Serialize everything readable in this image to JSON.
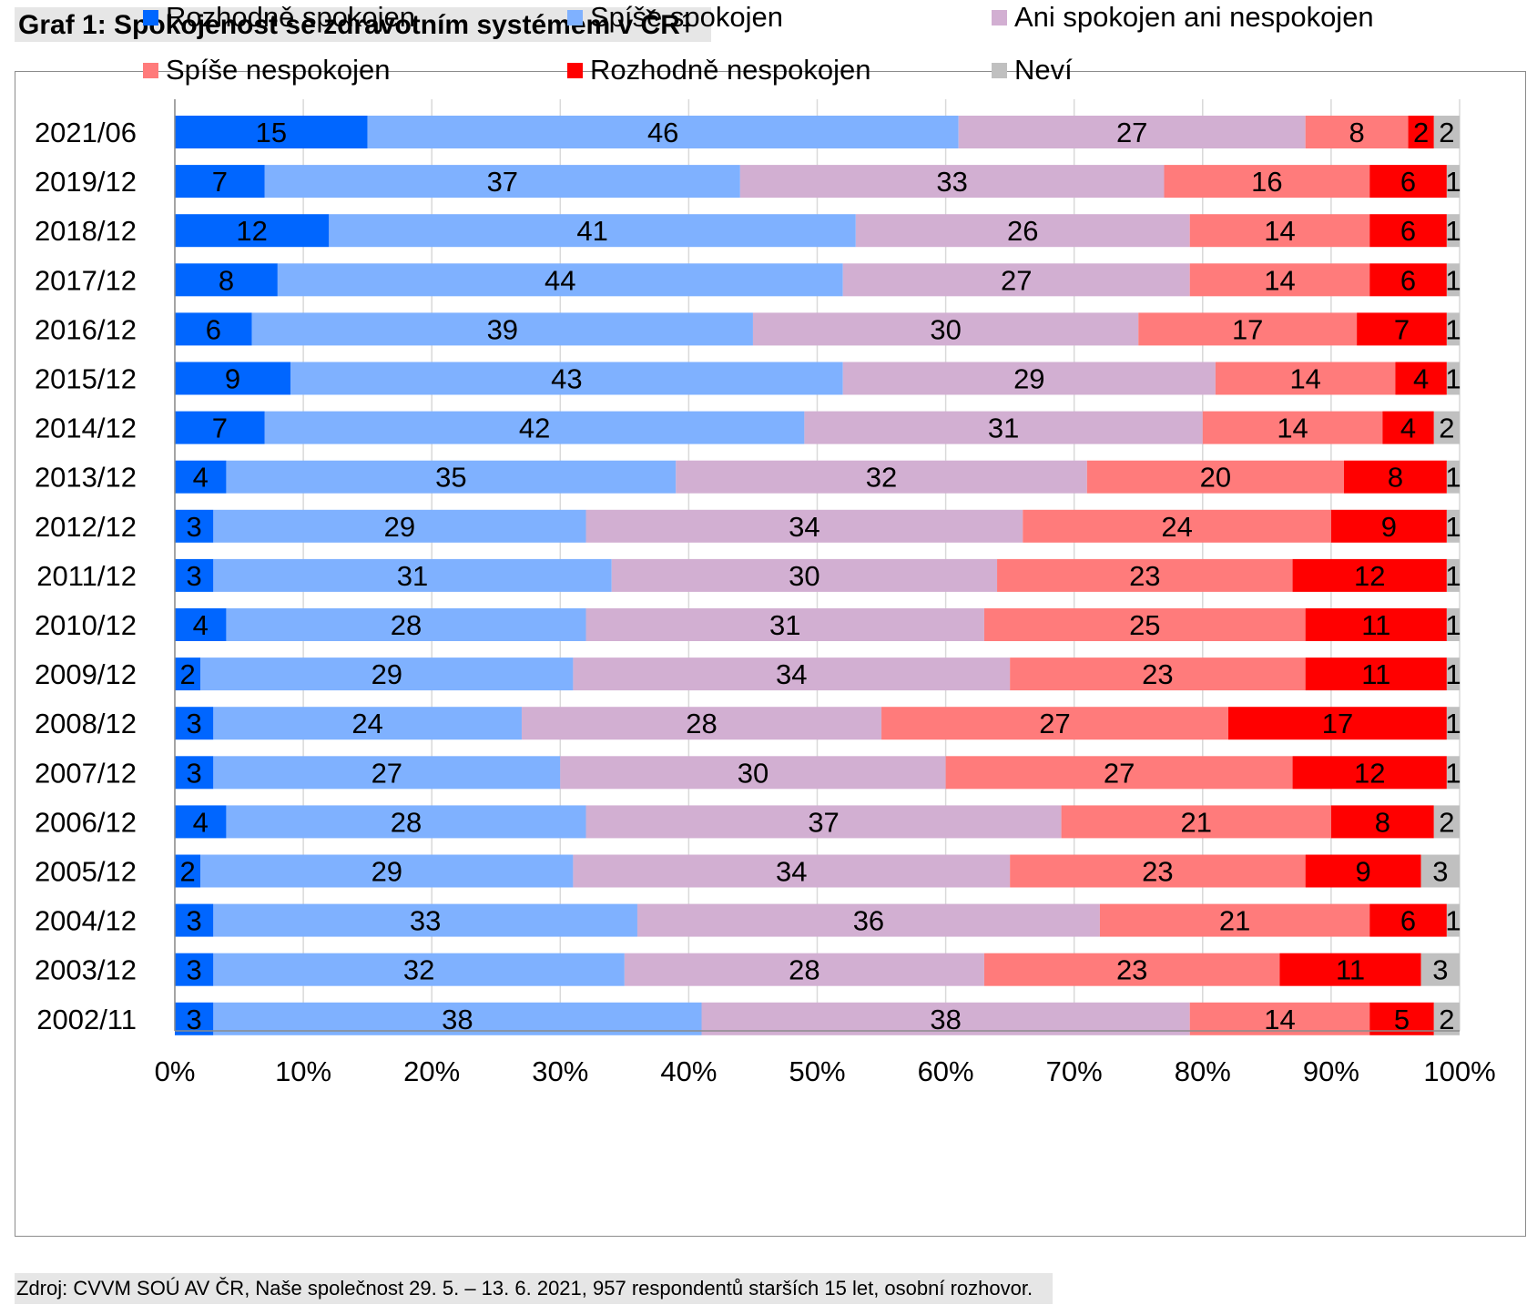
{
  "title": {
    "text": "Graf 1: Spokojenost se zdravotním systémem v ČR",
    "footnote_marker": "1"
  },
  "source": "Zdroj: CVVM SOÚ AV ČR, Naše společnost 29. 5. – 13. 6. 2021, 957 respondentů starších 15 let, osobní rozhovor.",
  "chart_data": {
    "type": "bar",
    "orientation": "horizontal",
    "stacked": "percent",
    "categories": [
      "2021/06",
      "2019/12",
      "2018/12",
      "2017/12",
      "2016/12",
      "2015/12",
      "2014/12",
      "2013/12",
      "2012/12",
      "2011/12",
      "2010/12",
      "2009/12",
      "2008/12",
      "2007/12",
      "2006/12",
      "2005/12",
      "2004/12",
      "2003/12",
      "2002/11"
    ],
    "series": [
      {
        "name": "Rozhodně spokojen",
        "color": "#0066ff",
        "values": [
          15,
          7,
          12,
          8,
          6,
          9,
          7,
          4,
          3,
          3,
          4,
          2,
          3,
          3,
          4,
          2,
          3,
          3,
          3
        ]
      },
      {
        "name": "Spíše spokojen",
        "color": "#7fb1ff",
        "values": [
          46,
          37,
          41,
          44,
          39,
          43,
          42,
          35,
          29,
          31,
          28,
          29,
          24,
          27,
          28,
          29,
          33,
          32,
          38
        ]
      },
      {
        "name": "Ani spokojen ani nespokojen",
        "color": "#d2afd2",
        "values": [
          27,
          33,
          26,
          27,
          30,
          29,
          31,
          32,
          34,
          30,
          31,
          34,
          28,
          30,
          37,
          34,
          36,
          28,
          38
        ]
      },
      {
        "name": "Spíše nespokojen",
        "color": "#ff7b7b",
        "values": [
          8,
          16,
          14,
          14,
          17,
          14,
          14,
          20,
          24,
          23,
          25,
          23,
          27,
          27,
          21,
          23,
          21,
          23,
          14
        ]
      },
      {
        "name": "Rozhodně nespokojen",
        "color": "#ff0000",
        "values": [
          2,
          6,
          6,
          6,
          7,
          4,
          4,
          8,
          9,
          12,
          11,
          11,
          17,
          12,
          8,
          9,
          6,
          11,
          5
        ]
      },
      {
        "name": "Neví",
        "color": "#c0c0c0",
        "values": [
          2,
          1,
          1,
          1,
          1,
          1,
          2,
          1,
          1,
          1,
          1,
          1,
          1,
          1,
          2,
          3,
          1,
          3,
          2
        ]
      }
    ],
    "xaxis": {
      "ticks": [
        "0%",
        "10%",
        "20%",
        "30%",
        "40%",
        "50%",
        "60%",
        "70%",
        "80%",
        "90%",
        "100%"
      ],
      "range": [
        0,
        100
      ]
    },
    "grid": true,
    "legend_position": "bottom"
  }
}
